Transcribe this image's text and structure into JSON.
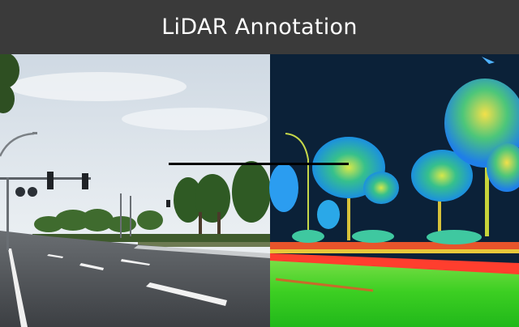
{
  "header": {
    "title": "LiDAR Annotation"
  },
  "colors": {
    "header_bg": "#3a3a3a",
    "title_text": "#ffffff",
    "lidar_sky": "#0b2138",
    "lidar_ground": "#33d61c",
    "lidar_trees": "#2bb8ff",
    "lidar_hedge": "#ff4a2e",
    "photo_sky": "#dfe7ee",
    "photo_road": "#4e5256"
  },
  "image": {
    "left_half": "photograph of a roadside street",
    "right_half": "LiDAR point-cloud rendering of the same scene"
  }
}
